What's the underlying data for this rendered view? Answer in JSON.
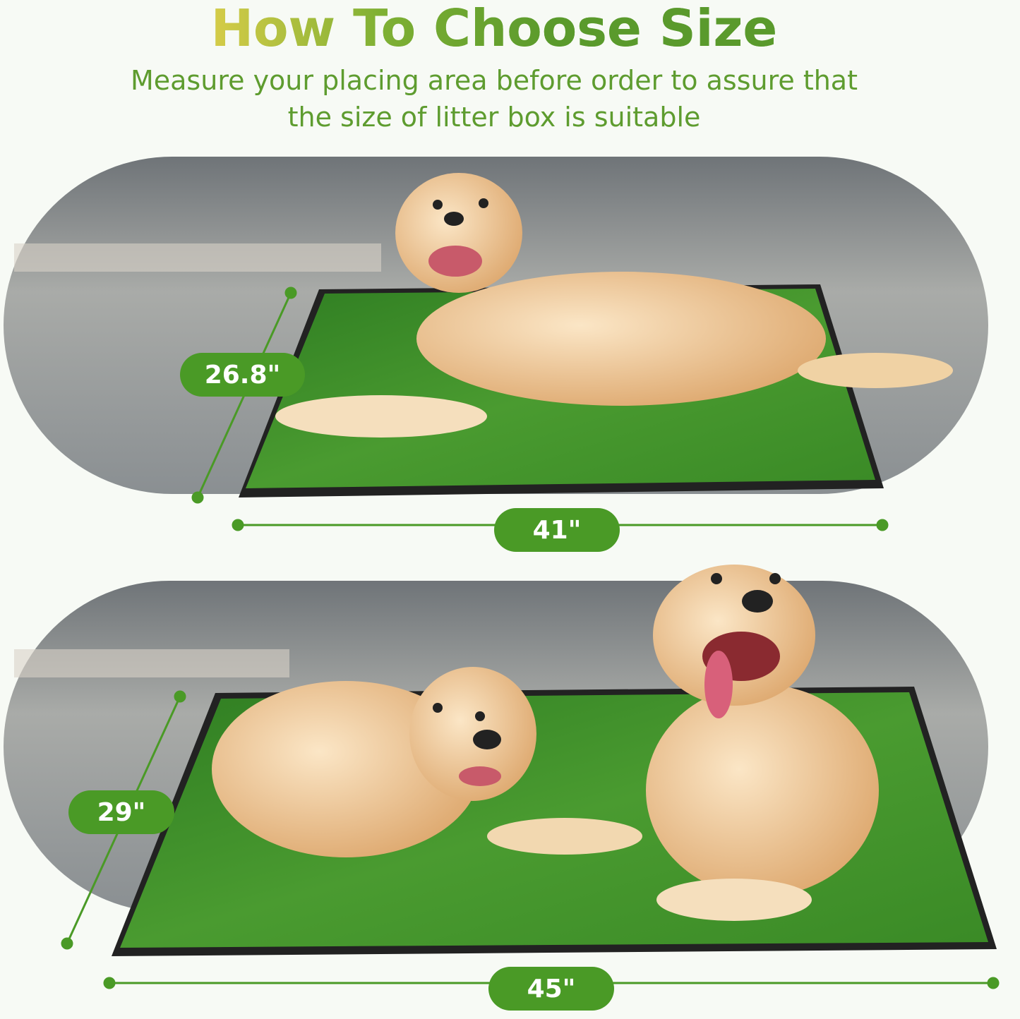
{
  "header": {
    "title": "How To Choose Size",
    "subtitle_line1": "Measure your placing area before order to assure that",
    "subtitle_line2": "the size of litter box is suitable"
  },
  "products": [
    {
      "depth_label": "26.8\"",
      "width_label": "41\"",
      "dog_count": 1
    },
    {
      "depth_label": "29\"",
      "width_label": "45\"",
      "dog_count": 2
    }
  ],
  "colors": {
    "accent": "#4a9a26",
    "grass": "#3f8f2a",
    "tray": "#2a2a2a",
    "floor": "#8d9296",
    "dog": "#e6b77d"
  }
}
